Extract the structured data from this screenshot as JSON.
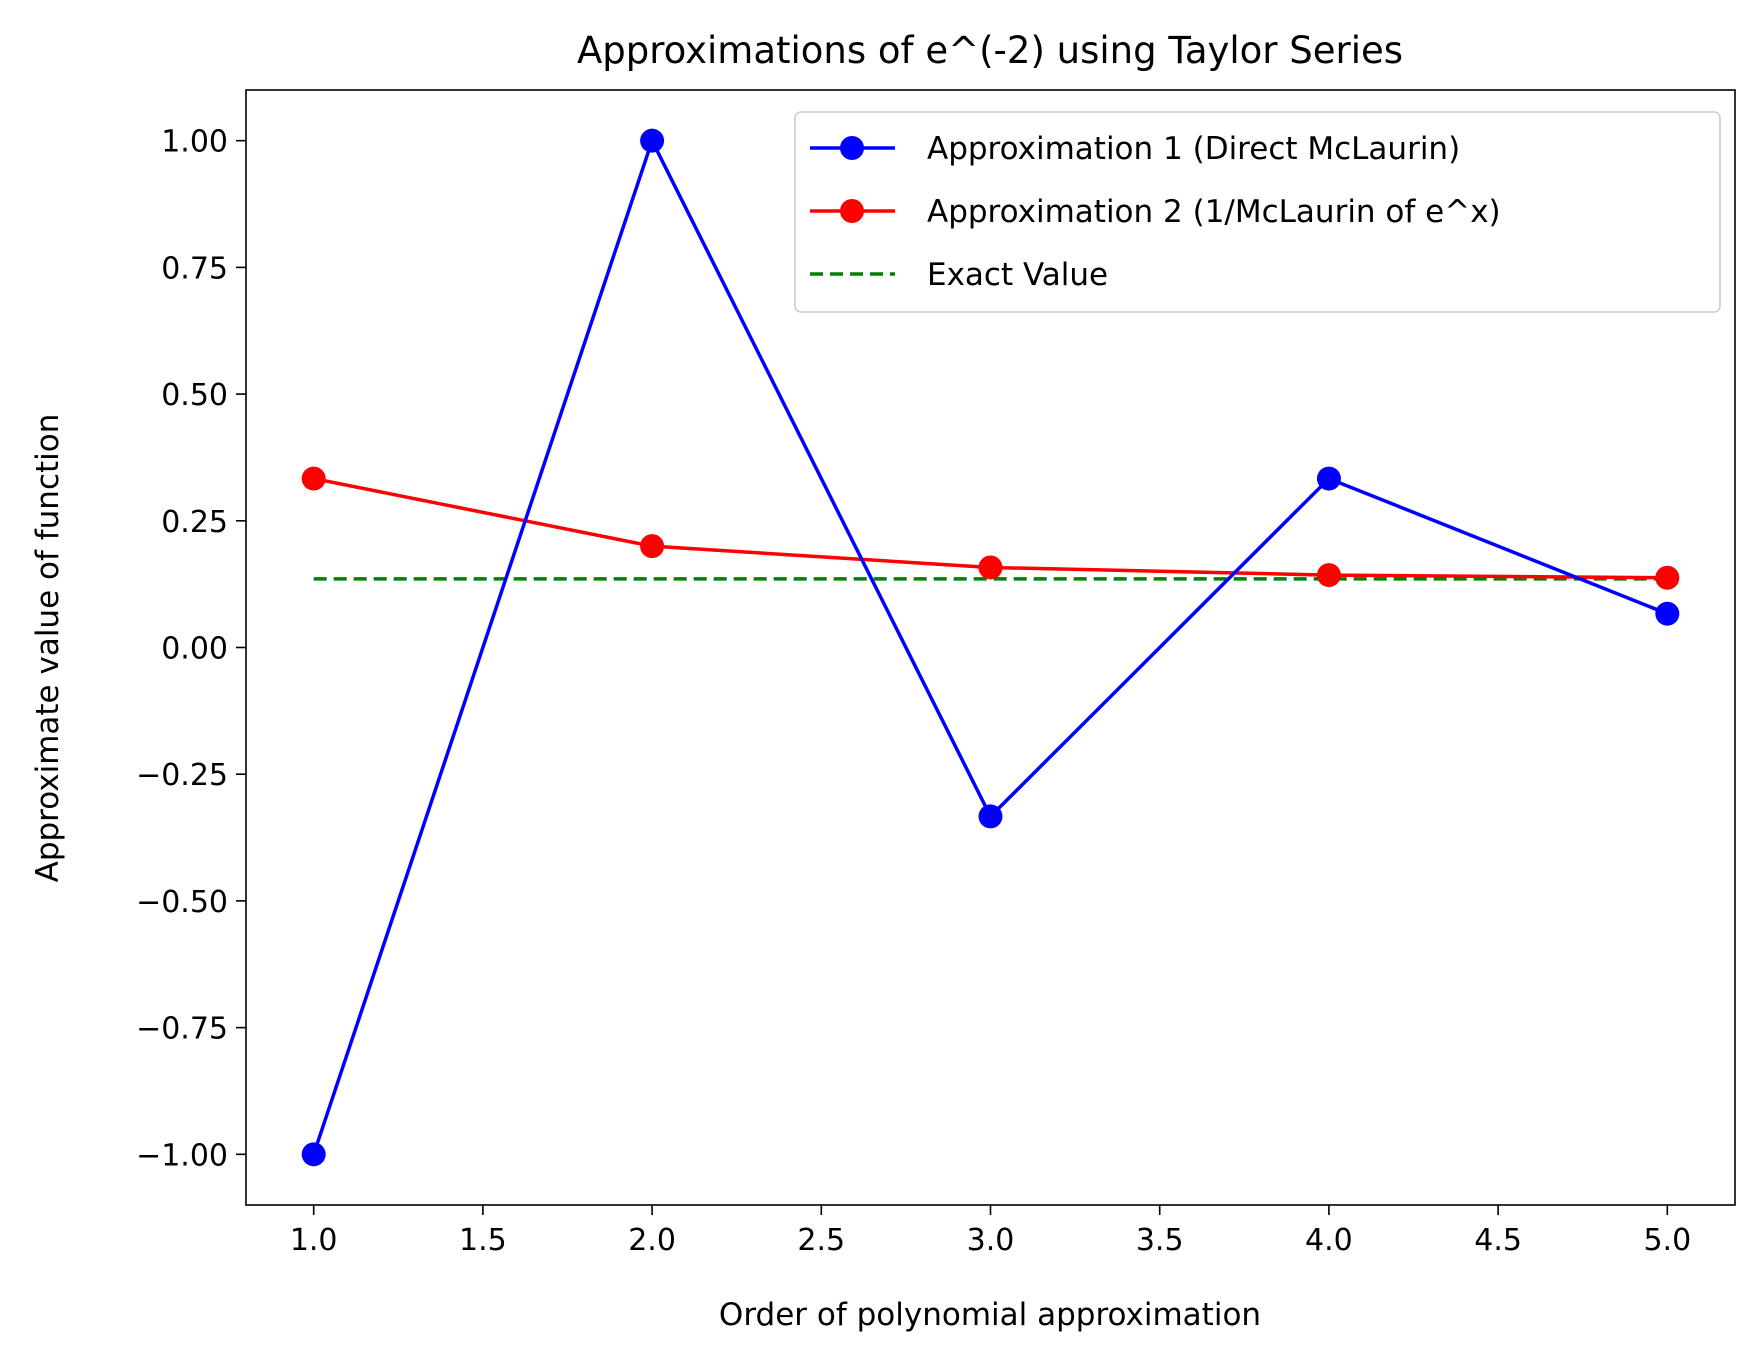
{
  "chart_data": {
    "type": "line",
    "title": "Approximations of e^(-2) using Taylor Series",
    "xlabel": "Order of polynomial approximation",
    "ylabel": "Approximate value of function",
    "xlim": [
      0.8,
      5.2
    ],
    "ylim": [
      -1.1,
      1.1
    ],
    "x_ticks": [
      1.0,
      1.5,
      2.0,
      2.5,
      3.0,
      3.5,
      4.0,
      4.5,
      5.0
    ],
    "x_tick_labels": [
      "1.0",
      "1.5",
      "2.0",
      "2.5",
      "3.0",
      "3.5",
      "4.0",
      "4.5",
      "5.0"
    ],
    "y_ticks": [
      1.0,
      0.75,
      0.5,
      0.25,
      0.0,
      -0.25,
      -0.5,
      -0.75,
      -1.0
    ],
    "y_tick_labels": [
      "1.00",
      "0.75",
      "0.50",
      "0.25",
      "0.00",
      "−0.25",
      "−0.50",
      "−0.75",
      "−1.00"
    ],
    "grid": false,
    "legend_position": "top-right",
    "x": [
      1,
      2,
      3,
      4,
      5
    ],
    "series": [
      {
        "name": "Approximation 1 (Direct McLaurin)",
        "color": "#0000ff",
        "style": "solid",
        "marker": "circle",
        "values": [
          -1.0,
          1.0,
          -0.3333,
          0.3333,
          0.0667
        ]
      },
      {
        "name": "Approximation 2 (1/McLaurin of e^x)",
        "color": "#ff0000",
        "style": "solid",
        "marker": "circle",
        "values": [
          0.3333,
          0.2,
          0.1579,
          0.1429,
          0.1376
        ]
      },
      {
        "name": "Exact Value",
        "color": "#008000",
        "style": "dashed",
        "marker": "none",
        "values": [
          0.1353,
          0.1353,
          0.1353,
          0.1353,
          0.1353
        ]
      }
    ]
  }
}
